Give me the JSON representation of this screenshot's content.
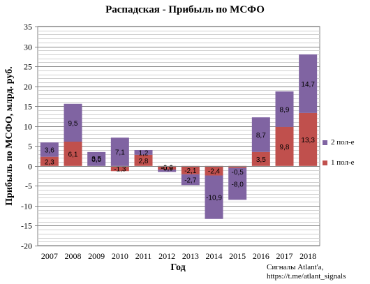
{
  "chart_data": {
    "type": "bar",
    "stacked": true,
    "title": "Распадская - Прибыль по МСФО",
    "xlabel": "Год",
    "ylabel": "Прибыль по МСФО, млрд. руб.",
    "categories": [
      "2007",
      "2008",
      "2009",
      "2010",
      "2011",
      "2012",
      "2013",
      "2014",
      "2015",
      "2016",
      "2017",
      "2018"
    ],
    "ylim": [
      -20,
      35
    ],
    "yticks": [
      -20,
      -15,
      -10,
      -5,
      0,
      5,
      10,
      15,
      20,
      25,
      30,
      35
    ],
    "grid": true,
    "legend_position": "right",
    "series": [
      {
        "name": "1 пол-е",
        "color": "#c0504d",
        "values": [
          2.3,
          6.1,
          0.0,
          -1.3,
          2.8,
          -0.9,
          -2.1,
          -2.4,
          -0.5,
          3.5,
          9.8,
          13.3
        ],
        "labels": [
          "2,3",
          "6,1",
          "0,0",
          "-1,3",
          "2,8",
          "-0,9",
          "-2,1",
          "-2,4",
          "-0,5",
          "3,5",
          "9,8",
          "13,3"
        ]
      },
      {
        "name": "2 пол-е",
        "color": "#8064a2",
        "values": [
          3.6,
          9.5,
          3.5,
          7.1,
          1.2,
          -0.6,
          -2.7,
          -10.9,
          -8.0,
          8.7,
          8.9,
          14.7
        ],
        "labels": [
          "3,6",
          "9,5",
          "3,5",
          "7,1",
          "1,2",
          "-0,6",
          "-2,7",
          "-10,9",
          "-8,0",
          "8,7",
          "8,9",
          "14,7"
        ]
      }
    ]
  },
  "credit": {
    "line1": "Сигналы Atlant'a,",
    "line2": "https://t.me/atlant_signals"
  }
}
